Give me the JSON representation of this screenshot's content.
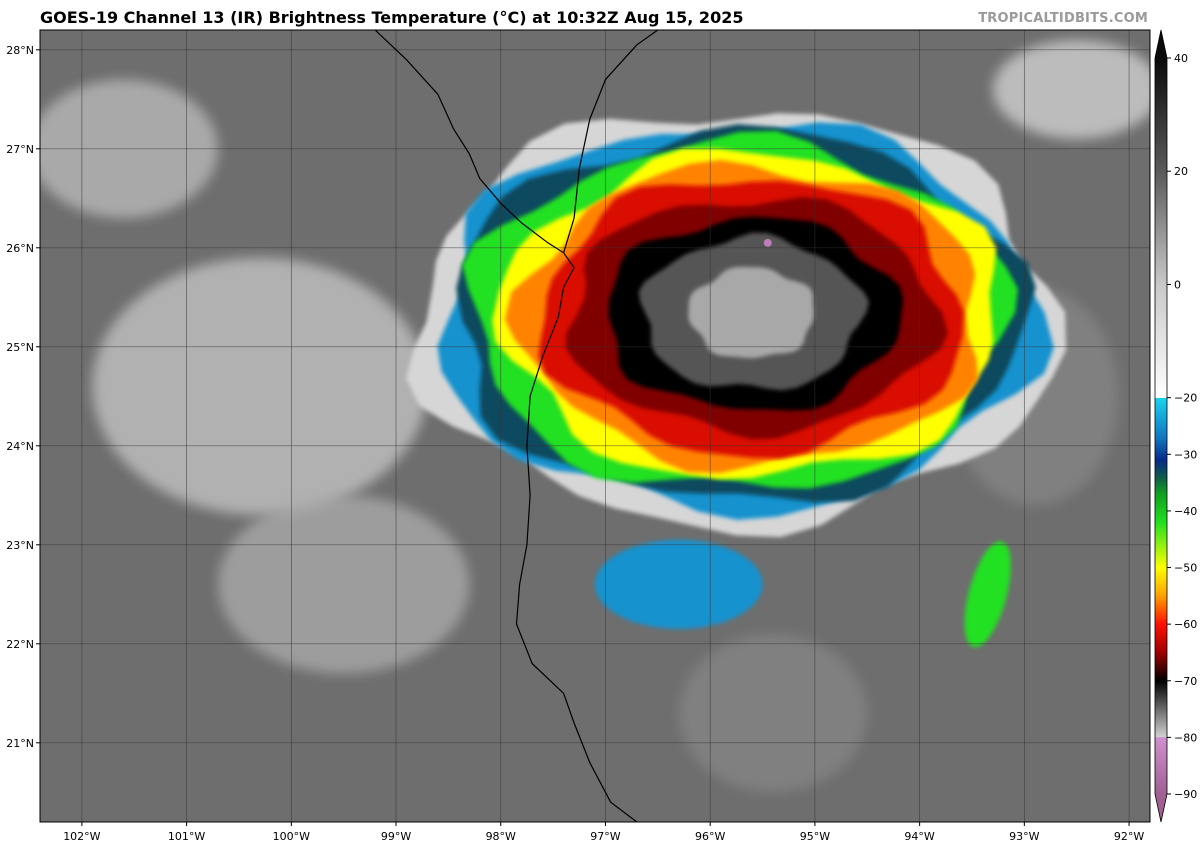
{
  "header": {
    "title": "GOES-19 Channel 13 (IR) Brightness Temperature (°C) at 10:32Z Aug 15, 2025",
    "watermark": "TROPICALTIDBITS.COM"
  },
  "map": {
    "lon_range": [
      -102.4,
      -91.8
    ],
    "lat_range": [
      20.2,
      28.2
    ],
    "lon_ticks": [
      {
        "value": -102,
        "label": "102°W"
      },
      {
        "value": -101,
        "label": "101°W"
      },
      {
        "value": -100,
        "label": "100°W"
      },
      {
        "value": -99,
        "label": "99°W"
      },
      {
        "value": -98,
        "label": "98°W"
      },
      {
        "value": -97,
        "label": "97°W"
      },
      {
        "value": -96,
        "label": "96°W"
      },
      {
        "value": -95,
        "label": "95°W"
      },
      {
        "value": -94,
        "label": "94°W"
      },
      {
        "value": -93,
        "label": "93°W"
      },
      {
        "value": -92,
        "label": "92°W"
      }
    ],
    "lat_ticks": [
      {
        "value": 28,
        "label": "28°N"
      },
      {
        "value": 27,
        "label": "27°N"
      },
      {
        "value": 26,
        "label": "26°N"
      },
      {
        "value": 25,
        "label": "25°N"
      },
      {
        "value": 24,
        "label": "24°N"
      },
      {
        "value": 23,
        "label": "23°N"
      },
      {
        "value": 22,
        "label": "22°N"
      },
      {
        "value": 21,
        "label": "21°N"
      }
    ],
    "grid": true,
    "coastline": [
      [
        -99.2,
        28.2
      ],
      [
        -98.9,
        27.9
      ],
      [
        -98.6,
        27.55
      ],
      [
        -98.45,
        27.2
      ],
      [
        -98.3,
        26.95
      ],
      [
        -98.2,
        26.7
      ],
      [
        -98.0,
        26.45
      ],
      [
        -97.8,
        26.25
      ],
      [
        -97.55,
        26.05
      ],
      [
        -97.4,
        25.95
      ],
      [
        -97.3,
        25.8
      ],
      [
        -97.4,
        25.6
      ],
      [
        -97.45,
        25.3
      ],
      [
        -97.6,
        24.9
      ],
      [
        -97.72,
        24.5
      ],
      [
        -97.75,
        24.0
      ],
      [
        -97.72,
        23.5
      ],
      [
        -97.75,
        23.0
      ],
      [
        -97.82,
        22.6
      ],
      [
        -97.85,
        22.2
      ],
      [
        -97.7,
        21.8
      ],
      [
        -97.4,
        21.5
      ],
      [
        -97.3,
        21.2
      ],
      [
        -97.15,
        20.8
      ],
      [
        -96.95,
        20.4
      ],
      [
        -96.7,
        20.2
      ]
    ],
    "texas_coast": [
      [
        -97.4,
        25.95
      ],
      [
        -97.3,
        26.3
      ],
      [
        -97.25,
        26.8
      ],
      [
        -97.15,
        27.3
      ],
      [
        -97.0,
        27.7
      ],
      [
        -96.7,
        28.05
      ],
      [
        -96.5,
        28.2
      ]
    ]
  },
  "imagery": {
    "background_gray": "#6e6e6e",
    "gray_patches": [
      {
        "lon": -100.3,
        "lat": 24.6,
        "rlon": 1.6,
        "rlat": 1.3,
        "t": 0
      },
      {
        "lon": -101.6,
        "lat": 27.0,
        "rlon": 0.9,
        "rlat": 0.7,
        "t": 2
      },
      {
        "lon": -99.5,
        "lat": 22.6,
        "rlon": 1.2,
        "rlat": 0.9,
        "t": 5
      },
      {
        "lon": -92.5,
        "lat": 27.6,
        "rlon": 0.8,
        "rlat": 0.5,
        "t": -5
      },
      {
        "lon": -92.9,
        "lat": 24.5,
        "rlon": 0.8,
        "rlat": 1.1,
        "t": 12
      },
      {
        "lon": -95.4,
        "lat": 21.3,
        "rlon": 0.9,
        "rlat": 0.8,
        "t": 12
      }
    ],
    "storm": {
      "center_lon": -95.6,
      "center_lat": 25.35,
      "rings": [
        {
          "rlon": 3.05,
          "rlat": 2.05,
          "t": -5
        },
        {
          "rlon": 2.85,
          "rlat": 1.9,
          "t": -25
        },
        {
          "rlon": 2.7,
          "rlat": 1.82,
          "t": -33
        },
        {
          "rlon": 2.55,
          "rlat": 1.72,
          "t": -42
        },
        {
          "rlon": 2.38,
          "rlat": 1.6,
          "t": -50
        },
        {
          "rlon": 2.2,
          "rlat": 1.48,
          "t": -56
        },
        {
          "rlon": 2.0,
          "rlat": 1.36,
          "t": -62
        },
        {
          "rlon": 1.75,
          "rlat": 1.15,
          "t": -66
        },
        {
          "rlon": 1.4,
          "rlat": 0.95,
          "t": -70
        },
        {
          "rlon": 1.05,
          "rlat": 0.75,
          "t": -74
        },
        {
          "rlon": 0.6,
          "rlat": 0.45,
          "t": -78
        }
      ],
      "outflow_band": {
        "lon": -96.3,
        "lat": 22.6,
        "rlon": 0.8,
        "rlat": 0.45,
        "t": -25
      },
      "warm_spot": {
        "lon": -95.45,
        "lat": 26.05,
        "t": -84
      }
    },
    "rain_band": {
      "lon": -93.35,
      "lat": 22.5,
      "rlon": 0.18,
      "rlat": 0.55,
      "t": -42
    }
  },
  "colorbar": {
    "min": -90,
    "max": 40,
    "tick_values": [
      40,
      20,
      0,
      -20,
      -30,
      -40,
      -50,
      -60,
      -70,
      -80,
      -90
    ],
    "tick_labels": [
      "40",
      "20",
      "0",
      "−20",
      "−30",
      "−40",
      "−50",
      "−60",
      "−70",
      "−80",
      "−90"
    ],
    "stops": [
      {
        "t": 40,
        "color": "#0a0a0a"
      },
      {
        "t": 20,
        "color": "#5a5a5a"
      },
      {
        "t": 0,
        "color": "#c8c8c8"
      },
      {
        "t": -20,
        "color": "#ffffff"
      },
      {
        "t": -20.1,
        "color": "#19d2f0"
      },
      {
        "t": -27,
        "color": "#1078c0"
      },
      {
        "t": -31,
        "color": "#082a8a"
      },
      {
        "t": -34,
        "color": "#0e5a4a"
      },
      {
        "t": -37,
        "color": "#10a020"
      },
      {
        "t": -42,
        "color": "#20e020"
      },
      {
        "t": -50,
        "color": "#ffff00"
      },
      {
        "t": -55,
        "color": "#ffa000"
      },
      {
        "t": -60,
        "color": "#ff1000"
      },
      {
        "t": -65,
        "color": "#a00000"
      },
      {
        "t": -70,
        "color": "#000000"
      },
      {
        "t": -75,
        "color": "#6a6a6a"
      },
      {
        "t": -79.9,
        "color": "#d0d0d0"
      },
      {
        "t": -80,
        "color": "#d090d0"
      },
      {
        "t": -90,
        "color": "#a06090"
      }
    ]
  }
}
